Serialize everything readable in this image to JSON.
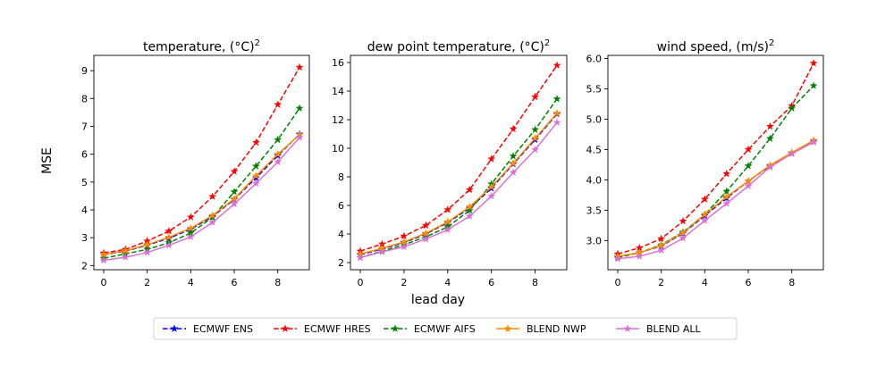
{
  "figure": {
    "ylabel": "MSE",
    "xlabel": "lead day"
  },
  "legend": {
    "entries": [
      {
        "name": "ECMWF ENS",
        "color": "#0000ff",
        "dash": true
      },
      {
        "name": "ECMWF HRES",
        "color": "#ff0000",
        "dash": true
      },
      {
        "name": "ECMWF AIFS",
        "color": "#008000",
        "dash": true
      },
      {
        "name": "BLEND NWP",
        "color": "#ff8c00",
        "dash": false
      },
      {
        "name": "BLEND ALL",
        "color": "#da70d6",
        "dash": false
      }
    ]
  },
  "chart_data": [
    {
      "type": "line",
      "title": "temperature, (°C)",
      "title_sup": "2",
      "xlabel": "",
      "ylabel": "MSE",
      "x": [
        0,
        1,
        2,
        3,
        4,
        5,
        6,
        7,
        8,
        9
      ],
      "xticks": [
        0,
        2,
        4,
        6,
        8
      ],
      "xlim": [
        -0.45,
        9.45
      ],
      "ylim": [
        1.85,
        9.55
      ],
      "yticks": [
        2,
        3,
        4,
        5,
        6,
        7,
        8,
        9
      ],
      "ytick_decimals": 0,
      "series": [
        {
          "name": "ECMWF ENS",
          "values": [
            2.39,
            2.52,
            2.73,
            2.98,
            3.31,
            3.76,
            4.38,
            5.15,
            5.95,
            6.72
          ]
        },
        {
          "name": "ECMWF HRES",
          "values": [
            2.45,
            2.58,
            2.88,
            3.24,
            3.74,
            4.48,
            5.38,
            6.42,
            7.78,
            9.12
          ]
        },
        {
          "name": "ECMWF AIFS",
          "values": [
            2.26,
            2.42,
            2.58,
            2.82,
            3.17,
            3.73,
            4.65,
            5.57,
            6.52,
            7.65
          ]
        },
        {
          "name": "BLEND NWP",
          "values": [
            2.4,
            2.53,
            2.75,
            3.02,
            3.34,
            3.8,
            4.4,
            5.22,
            6.0,
            6.7
          ]
        },
        {
          "name": "BLEND ALL",
          "values": [
            2.19,
            2.3,
            2.47,
            2.73,
            3.03,
            3.55,
            4.21,
            4.95,
            5.72,
            6.6
          ]
        }
      ]
    },
    {
      "type": "line",
      "title": "dew point temperature, (°C)",
      "title_sup": "2",
      "xlabel": "lead day",
      "ylabel": "",
      "x": [
        0,
        1,
        2,
        3,
        4,
        5,
        6,
        7,
        8,
        9
      ],
      "xticks": [
        0,
        2,
        4,
        6,
        8
      ],
      "xlim": [
        -0.45,
        9.45
      ],
      "ylim": [
        1.5,
        16.5
      ],
      "yticks": [
        2,
        4,
        6,
        8,
        10,
        12,
        14,
        16
      ],
      "ytick_decimals": 0,
      "series": [
        {
          "name": "ECMWF ENS",
          "values": [
            2.55,
            2.95,
            3.4,
            4.0,
            4.8,
            5.8,
            7.2,
            8.9,
            10.6,
            12.4
          ]
        },
        {
          "name": "ECMWF HRES",
          "values": [
            2.8,
            3.3,
            3.85,
            4.6,
            5.7,
            7.1,
            9.25,
            11.35,
            13.6,
            15.8
          ]
        },
        {
          "name": "ECMWF AIFS",
          "values": [
            2.35,
            2.8,
            3.25,
            3.8,
            4.5,
            5.65,
            7.5,
            9.45,
            11.3,
            13.45
          ]
        },
        {
          "name": "BLEND NWP",
          "values": [
            2.6,
            3.0,
            3.45,
            4.05,
            4.85,
            5.9,
            7.3,
            8.95,
            10.7,
            12.45
          ]
        },
        {
          "name": "BLEND ALL",
          "values": [
            2.35,
            2.75,
            3.1,
            3.65,
            4.3,
            5.25,
            6.65,
            8.3,
            9.9,
            11.8
          ]
        }
      ]
    },
    {
      "type": "line",
      "title": "wind speed, (m/s)",
      "title_sup": "2",
      "xlabel": "",
      "ylabel": "",
      "x": [
        0,
        1,
        2,
        3,
        4,
        5,
        6,
        7,
        8,
        9
      ],
      "xticks": [
        0,
        2,
        4,
        6,
        8
      ],
      "xlim": [
        -0.45,
        9.45
      ],
      "ylim": [
        2.52,
        6.05
      ],
      "yticks": [
        3.0,
        3.5,
        4.0,
        4.5,
        5.0,
        5.5,
        6.0
      ],
      "ytick_decimals": 1,
      "series": [
        {
          "name": "ECMWF ENS",
          "values": [
            2.74,
            2.8,
            2.91,
            3.12,
            3.41,
            3.7,
            3.98,
            4.23,
            4.44,
            4.64
          ]
        },
        {
          "name": "ECMWF HRES",
          "values": [
            2.78,
            2.88,
            3.03,
            3.32,
            3.68,
            4.1,
            4.5,
            4.88,
            5.22,
            5.92
          ]
        },
        {
          "name": "ECMWF AIFS",
          "values": [
            2.72,
            2.8,
            2.93,
            3.14,
            3.43,
            3.81,
            4.23,
            4.68,
            5.18,
            5.55
          ]
        },
        {
          "name": "BLEND NWP",
          "values": [
            2.74,
            2.8,
            2.92,
            3.13,
            3.43,
            3.72,
            3.98,
            4.24,
            4.45,
            4.65
          ]
        },
        {
          "name": "BLEND ALL",
          "values": [
            2.7,
            2.74,
            2.84,
            3.04,
            3.33,
            3.61,
            3.9,
            4.21,
            4.43,
            4.62
          ]
        }
      ]
    }
  ]
}
